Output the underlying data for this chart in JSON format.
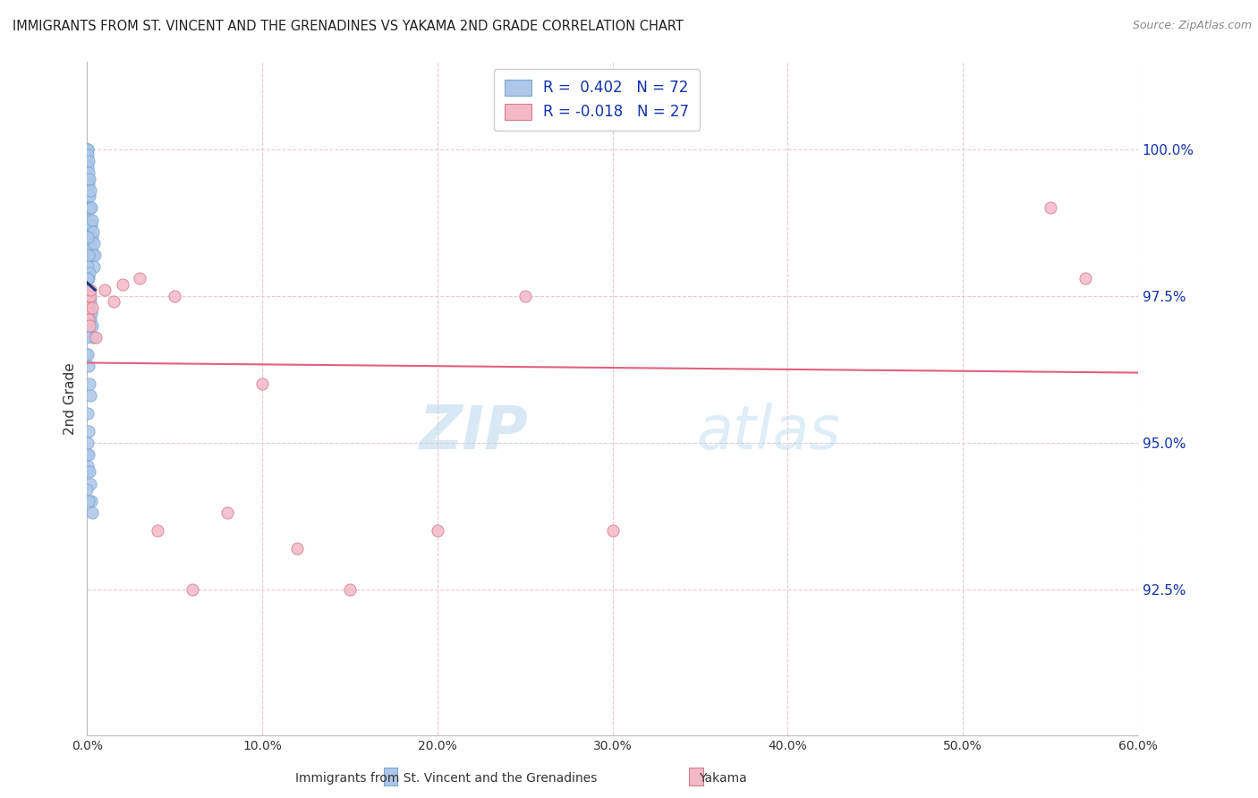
{
  "title": "IMMIGRANTS FROM ST. VINCENT AND THE GRENADINES VS YAKAMA 2ND GRADE CORRELATION CHART",
  "source": "Source: ZipAtlas.com",
  "ylabel": "2nd Grade",
  "legend_label1": "Immigrants from St. Vincent and the Grenadines",
  "legend_label2": "Yakama",
  "R1": 0.402,
  "N1": 72,
  "R2": -0.018,
  "N2": 27,
  "blue_color": "#aec6e8",
  "blue_edge_color": "#7aaad0",
  "blue_line_color": "#1a3a7a",
  "pink_color": "#f4b8c8",
  "pink_edge_color": "#d08090",
  "pink_line_color": "#e06080",
  "xlim": [
    0.0,
    60.0
  ],
  "ylim": [
    90.0,
    101.5
  ],
  "ytick_values": [
    92.5,
    95.0,
    97.5,
    100.0
  ],
  "xtick_values": [
    0.0,
    10.0,
    20.0,
    30.0,
    40.0,
    50.0,
    60.0
  ],
  "background_color": "#ffffff",
  "blue_x": [
    0.0,
    0.0,
    0.0,
    0.0,
    0.0,
    0.05,
    0.05,
    0.05,
    0.05,
    0.05,
    0.05,
    0.1,
    0.1,
    0.1,
    0.1,
    0.1,
    0.15,
    0.15,
    0.15,
    0.15,
    0.2,
    0.2,
    0.2,
    0.2,
    0.25,
    0.25,
    0.25,
    0.3,
    0.3,
    0.3,
    0.35,
    0.35,
    0.4,
    0.4,
    0.45,
    0.05,
    0.05,
    0.1,
    0.1,
    0.15,
    0.0,
    0.0,
    0.05,
    0.05,
    0.1,
    0.1,
    0.15,
    0.2,
    0.2,
    0.25,
    0.3,
    0.35,
    0.0,
    0.0,
    0.05,
    0.1,
    0.15,
    0.2,
    0.05,
    0.1,
    0.0,
    0.0,
    0.05,
    0.05,
    0.1,
    0.15,
    0.2,
    0.25,
    0.3,
    0.0,
    0.05,
    0.1
  ],
  "blue_y": [
    100.0,
    100.0,
    100.0,
    99.9,
    99.8,
    100.0,
    100.0,
    99.9,
    99.7,
    99.5,
    99.3,
    99.8,
    99.6,
    99.4,
    99.2,
    99.0,
    99.5,
    99.2,
    99.0,
    98.8,
    99.3,
    99.0,
    98.7,
    98.4,
    99.0,
    98.7,
    98.3,
    98.8,
    98.5,
    98.2,
    98.6,
    98.2,
    98.4,
    98.0,
    98.2,
    98.5,
    98.0,
    98.2,
    97.8,
    97.9,
    97.8,
    97.6,
    97.8,
    97.5,
    97.6,
    97.3,
    97.5,
    97.4,
    97.1,
    97.2,
    97.0,
    96.8,
    96.8,
    96.5,
    96.5,
    96.3,
    96.0,
    95.8,
    95.5,
    95.2,
    94.8,
    94.5,
    95.0,
    94.6,
    94.8,
    94.5,
    94.3,
    94.0,
    93.8,
    94.2,
    97.5,
    94.0
  ],
  "pink_x": [
    0.0,
    0.0,
    0.05,
    0.05,
    0.1,
    0.1,
    0.15,
    0.2,
    0.3,
    0.5,
    1.0,
    1.5,
    2.0,
    3.0,
    4.0,
    5.0,
    6.0,
    8.0,
    10.0,
    12.0,
    15.0,
    20.0,
    25.0,
    30.0,
    55.0,
    57.0,
    0.2
  ],
  "pink_y": [
    97.5,
    97.3,
    97.4,
    97.2,
    97.5,
    97.1,
    97.0,
    97.5,
    97.3,
    96.8,
    97.6,
    97.4,
    97.7,
    97.8,
    93.5,
    97.5,
    92.5,
    93.8,
    96.0,
    93.2,
    92.5,
    93.5,
    97.5,
    93.5,
    99.0,
    97.8,
    97.6
  ],
  "watermark_text": "ZIPatlas",
  "watermark_color": "#cce8f4",
  "legend_R_color": "#1133aa",
  "legend_N_color": "#1133aa"
}
